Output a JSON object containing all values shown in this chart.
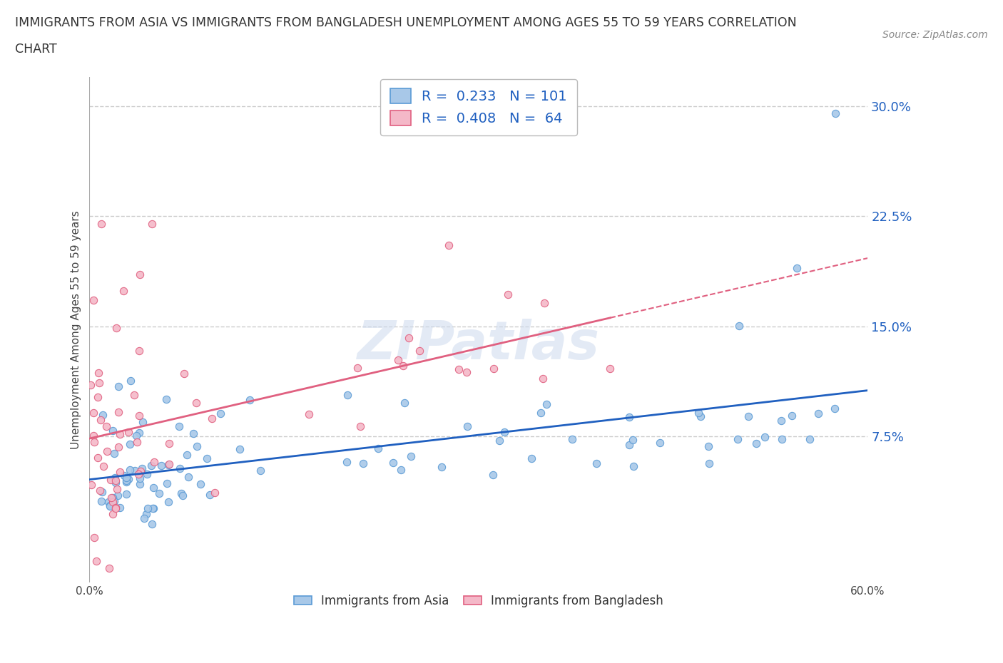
{
  "title_line1": "IMMIGRANTS FROM ASIA VS IMMIGRANTS FROM BANGLADESH UNEMPLOYMENT AMONG AGES 55 TO 59 YEARS CORRELATION",
  "title_line2": "CHART",
  "source": "Source: ZipAtlas.com",
  "ylabel": "Unemployment Among Ages 55 to 59 years",
  "xmin": 0.0,
  "xmax": 0.6,
  "ymin": -0.025,
  "ymax": 0.32,
  "yticks": [
    0.0,
    0.075,
    0.15,
    0.225,
    0.3
  ],
  "ytick_labels": [
    "",
    "7.5%",
    "15.0%",
    "22.5%",
    "30.0%"
  ],
  "xticks": [
    0.0,
    0.1,
    0.2,
    0.3,
    0.4,
    0.5,
    0.6
  ],
  "xtick_labels": [
    "0.0%",
    "",
    "",
    "",
    "",
    "",
    "60.0%"
  ],
  "grid_color": "#cccccc",
  "watermark": "ZIPatlas",
  "asia_color": "#a8c8e8",
  "asia_edge_color": "#5b9bd5",
  "bangladesh_color": "#f4b8c8",
  "bangladesh_edge_color": "#e06080",
  "asia_R": 0.233,
  "asia_N": 101,
  "bangladesh_R": 0.408,
  "bangladesh_N": 64,
  "asia_trend_color": "#2060c0",
  "bangladesh_trend_color": "#e06080",
  "legend_R_color": "#2060c0",
  "background_color": "#ffffff"
}
